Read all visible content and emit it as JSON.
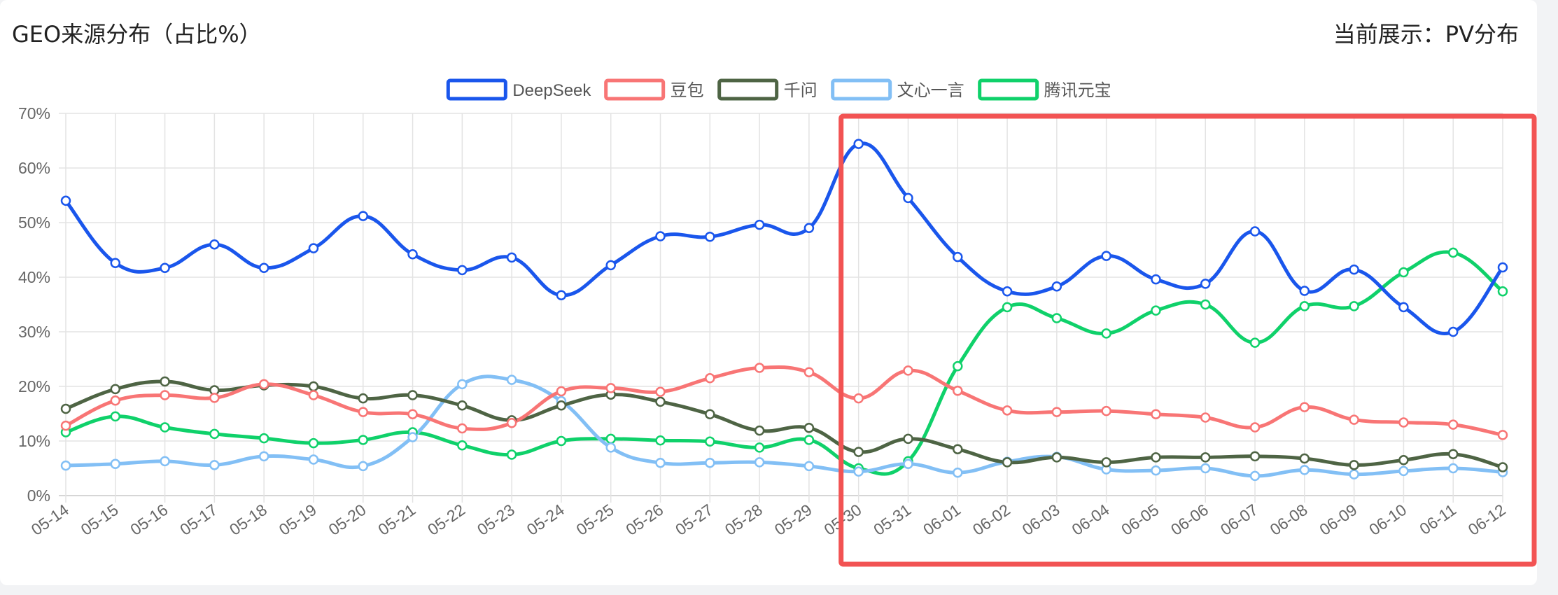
{
  "header": {
    "title": "GEO来源分布（占比%）",
    "metric_label": "当前展示：",
    "metric_value": "PV分布"
  },
  "highlight": {
    "color": "#f25353",
    "from": "05-30",
    "to": "06-12"
  },
  "chart_data": {
    "type": "line",
    "x": [
      "05-14",
      "05-15",
      "05-16",
      "05-17",
      "05-18",
      "05-19",
      "05-20",
      "05-21",
      "05-22",
      "05-23",
      "05-24",
      "05-25",
      "05-26",
      "05-27",
      "05-28",
      "05-29",
      "05-30",
      "05-31",
      "06-01",
      "06-02",
      "06-03",
      "06-04",
      "06-05",
      "06-06",
      "06-07",
      "06-08",
      "06-09",
      "06-10",
      "06-11",
      "06-12"
    ],
    "ylim": [
      0,
      70
    ],
    "yticks": [
      0,
      10,
      20,
      30,
      40,
      50,
      60,
      70
    ],
    "ytick_labels": [
      "0%",
      "10%",
      "20%",
      "30%",
      "40%",
      "50%",
      "60%",
      "70%"
    ],
    "grid": true,
    "legend_position": "top-center",
    "series": [
      {
        "name": "DeepSeek",
        "color": "#1a56ec",
        "values": [
          54,
          42.6,
          41.7,
          46,
          41.7,
          45.3,
          51.2,
          44.2,
          41.3,
          43.6,
          36.7,
          42.2,
          47.5,
          47.4,
          49.6,
          49,
          64.4,
          54.5,
          43.7,
          37.4,
          38.3,
          43.9,
          39.6,
          38.8,
          48.4,
          37.5,
          41.4,
          34.5,
          30,
          41.8
        ]
      },
      {
        "name": "豆包",
        "color": "#f87575",
        "values": [
          12.8,
          17.4,
          18.4,
          17.9,
          20.4,
          18.4,
          15.3,
          14.9,
          12.3,
          13.3,
          19.1,
          19.7,
          19,
          21.5,
          23.4,
          22.6,
          17.8,
          22.9,
          19.2,
          15.6,
          15.3,
          15.5,
          14.9,
          14.3,
          12.5,
          16.2,
          13.9,
          13.4,
          13,
          11.1
        ]
      },
      {
        "name": "千问",
        "color": "#4e6444",
        "values": [
          15.9,
          19.5,
          20.9,
          19.3,
          20.2,
          20,
          17.8,
          18.4,
          16.5,
          13.8,
          16.5,
          18.5,
          17.2,
          14.9,
          11.9,
          12.4,
          8,
          10.4,
          8.5,
          6.1,
          7,
          6.1,
          7,
          7,
          7.2,
          6.8,
          5.6,
          6.5,
          7.6,
          5.2
        ]
      },
      {
        "name": "文心一言",
        "color": "#82bff5",
        "values": [
          5.5,
          5.8,
          6.3,
          5.6,
          7.2,
          6.6,
          5.4,
          10.7,
          20.4,
          21.2,
          17.3,
          8.8,
          6,
          6,
          6.1,
          5.4,
          4.4,
          5.8,
          4.2,
          6.2,
          7.1,
          4.8,
          4.6,
          5,
          3.6,
          4.7,
          3.9,
          4.5,
          5,
          4.3
        ]
      },
      {
        "name": "腾讯元宝",
        "color": "#0fd16a",
        "values": [
          11.6,
          14.5,
          12.5,
          11.3,
          10.5,
          9.6,
          10.2,
          11.6,
          9.2,
          7.5,
          10,
          10.4,
          10.1,
          9.9,
          8.8,
          10.2,
          5,
          6.3,
          23.7,
          34.5,
          32.5,
          29.7,
          33.9,
          35,
          28,
          34.7,
          34.7,
          40.9,
          44.5,
          37.4
        ]
      }
    ]
  }
}
